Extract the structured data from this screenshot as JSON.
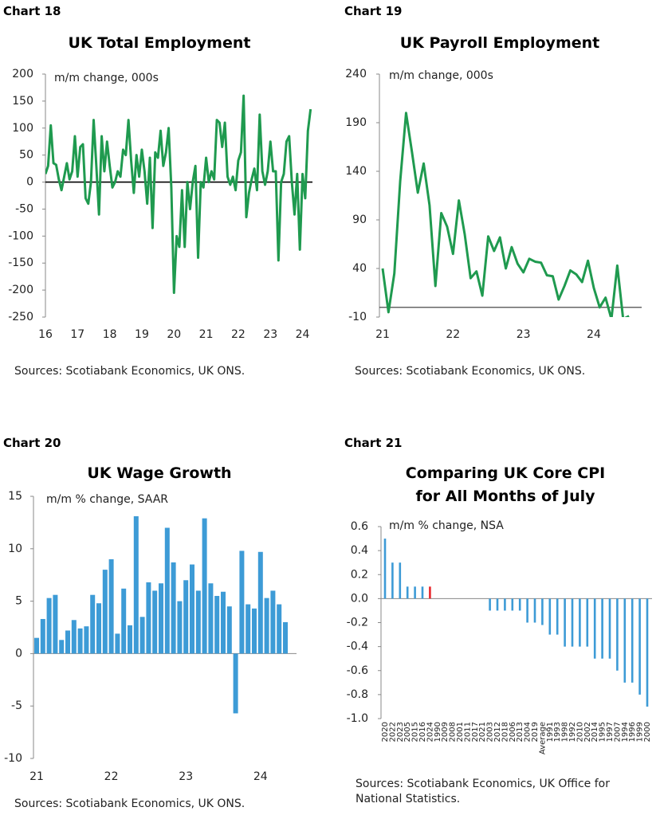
{
  "chart_data": [
    {
      "label": "Chart 18",
      "type": "line",
      "title": "UK Total Employment",
      "subtitle": "m/m change, 000s",
      "source": "Sources: Scotiabank Economics, UK ONS.",
      "color": "#1f9a4f",
      "categories": [
        "16",
        null,
        null,
        null,
        null,
        null,
        null,
        null,
        null,
        null,
        null,
        null,
        "17",
        null,
        null,
        null,
        null,
        null,
        null,
        null,
        null,
        null,
        null,
        null,
        "18",
        null,
        null,
        null,
        null,
        null,
        null,
        null,
        null,
        null,
        null,
        null,
        "19",
        null,
        null,
        null,
        null,
        null,
        null,
        null,
        null,
        null,
        null,
        null,
        "20",
        null,
        null,
        null,
        null,
        null,
        null,
        null,
        null,
        null,
        null,
        null,
        "21",
        null,
        null,
        null,
        null,
        null,
        null,
        null,
        null,
        null,
        null,
        null,
        "22",
        null,
        null,
        null,
        null,
        null,
        null,
        null,
        null,
        null,
        null,
        null,
        "23",
        null,
        null,
        null,
        null,
        null,
        null,
        null,
        null,
        null,
        null,
        null,
        "24",
        null,
        null,
        null
      ],
      "values": [
        15,
        30,
        105,
        35,
        32,
        5,
        -15,
        10,
        35,
        5,
        20,
        85,
        10,
        65,
        70,
        -30,
        -40,
        0,
        115,
        30,
        -60,
        85,
        20,
        75,
        30,
        -10,
        0,
        20,
        10,
        60,
        50,
        115,
        40,
        -20,
        50,
        10,
        60,
        20,
        -40,
        45,
        -85,
        55,
        45,
        95,
        30,
        55,
        100,
        -10,
        -205,
        -100,
        -120,
        -15,
        -120,
        0,
        -50,
        0,
        30,
        -140,
        0,
        -10,
        45,
        0,
        20,
        5,
        115,
        110,
        65,
        110,
        10,
        -5,
        10,
        -15,
        40,
        55,
        160,
        -65,
        -20,
        5,
        25,
        -15,
        125,
        20,
        -5,
        20,
        75,
        20,
        20,
        -145,
        0,
        15,
        75,
        85,
        0,
        -60,
        15,
        -125,
        15,
        -30,
        95,
        135
      ],
      "ylim": [
        -250,
        200
      ],
      "yticks": [
        -250,
        -200,
        -150,
        -100,
        -50,
        0,
        50,
        100,
        150,
        200
      ]
    },
    {
      "label": "Chart 19",
      "type": "line",
      "title": "UK Payroll Employment",
      "subtitle": "m/m change, 000s",
      "source": "Sources: Scotiabank Economics, UK ONS.",
      "color": "#1f9a4f",
      "categories": [
        "21",
        null,
        null,
        null,
        null,
        null,
        null,
        null,
        null,
        null,
        null,
        null,
        "22",
        null,
        null,
        null,
        null,
        null,
        null,
        null,
        null,
        null,
        null,
        null,
        "23",
        null,
        null,
        null,
        null,
        null,
        null,
        null,
        null,
        null,
        null,
        null,
        "24",
        null,
        null,
        null,
        null,
        null,
        null
      ],
      "values": [
        40,
        -5,
        35,
        130,
        200,
        160,
        118,
        148,
        105,
        22,
        97,
        83,
        55,
        110,
        75,
        30,
        37,
        12,
        73,
        58,
        72,
        40,
        62,
        45,
        36,
        50,
        47,
        46,
        33,
        32,
        8,
        22,
        38,
        34,
        26,
        48,
        20,
        0,
        10,
        -12,
        43,
        -12,
        -9
      ],
      "ylim": [
        -10,
        240
      ],
      "yticks": [
        -10,
        40,
        90,
        140,
        190,
        240
      ]
    },
    {
      "label": "Chart 20",
      "type": "bar",
      "title": "UK Wage Growth",
      "subtitle": "m/m % change, SAAR",
      "source": "Sources: Scotiabank Economics, UK ONS.",
      "color": "#3d9bd6",
      "categories": [
        "21",
        null,
        null,
        null,
        null,
        null,
        null,
        null,
        null,
        null,
        null,
        null,
        "22",
        null,
        null,
        null,
        null,
        null,
        null,
        null,
        null,
        null,
        null,
        null,
        "23",
        null,
        null,
        null,
        null,
        null,
        null,
        null,
        null,
        null,
        null,
        null,
        "24",
        null,
        null,
        null,
        null
      ],
      "values": [
        1.5,
        3.3,
        5.3,
        5.6,
        1.3,
        2.2,
        3.2,
        2.4,
        2.6,
        5.6,
        4.8,
        8.0,
        9.0,
        1.9,
        6.2,
        2.7,
        13.1,
        3.5,
        6.8,
        6.0,
        6.7,
        12.0,
        8.7,
        5.0,
        7.0,
        8.5,
        6.0,
        12.9,
        6.7,
        5.5,
        5.9,
        4.5,
        -5.7,
        9.8,
        4.7,
        4.3,
        9.7,
        5.3,
        6.0,
        4.7,
        3.0
      ],
      "ylim": [
        -10,
        15
      ],
      "yticks": [
        -10,
        -5,
        0,
        5,
        10,
        15
      ]
    },
    {
      "label": "Chart 21",
      "type": "bar",
      "title": [
        "Comparing UK Core CPI",
        "for All Months of July"
      ],
      "subtitle": "m/m % change, NSA",
      "source": "Sources: Scotiabank Economics, UK Office for National Statistics.",
      "color": "#3d9bd6",
      "categories": [
        "2020",
        "2022",
        "2023",
        "2005",
        "2015",
        "2016",
        "2024",
        "1990",
        "2009",
        "2008",
        "2001",
        "2011",
        "2017",
        "2021",
        "2003",
        "2012",
        "2018",
        "2006",
        "2013",
        "2004",
        "2019",
        "Average",
        "1991",
        "1993",
        "1998",
        "1992",
        "2010",
        "2002",
        "2014",
        "1995",
        "1997",
        "2007",
        "1994",
        "1996",
        "1999",
        "2000"
      ],
      "values": [
        0.5,
        0.3,
        0.3,
        0.1,
        0.1,
        0.1,
        0.1,
        0,
        0,
        0,
        0,
        0,
        0,
        0,
        -0.1,
        -0.1,
        -0.1,
        -0.1,
        -0.1,
        -0.2,
        -0.2,
        -0.22,
        -0.3,
        -0.3,
        -0.4,
        -0.4,
        -0.4,
        -0.4,
        -0.5,
        -0.5,
        -0.5,
        -0.6,
        -0.7,
        -0.7,
        -0.8,
        -0.9
      ],
      "colors": [
        "#3d9bd6",
        "#3d9bd6",
        "#3d9bd6",
        "#3d9bd6",
        "#3d9bd6",
        "#3d9bd6",
        "#e8262b",
        "#3d9bd6",
        "#3d9bd6",
        "#3d9bd6",
        "#3d9bd6",
        "#3d9bd6",
        "#3d9bd6",
        "#3d9bd6",
        "#3d9bd6",
        "#3d9bd6",
        "#3d9bd6",
        "#3d9bd6",
        "#3d9bd6",
        "#3d9bd6",
        "#3d9bd6",
        "#3d9bd6",
        "#3d9bd6",
        "#3d9bd6",
        "#3d9bd6",
        "#3d9bd6",
        "#3d9bd6",
        "#3d9bd6",
        "#3d9bd6",
        "#3d9bd6",
        "#3d9bd6",
        "#3d9bd6",
        "#3d9bd6",
        "#3d9bd6",
        "#3d9bd6",
        "#3d9bd6"
      ],
      "ylim": [
        -1,
        0.6
      ],
      "yticks": [
        0.6,
        0.4,
        0.2,
        {
          "value": 0,
          "label": "0.0"
        },
        -0.2,
        -0.4,
        -0.6,
        -0.8,
        {
          "value": -1,
          "label": "-1.0"
        }
      ]
    }
  ]
}
